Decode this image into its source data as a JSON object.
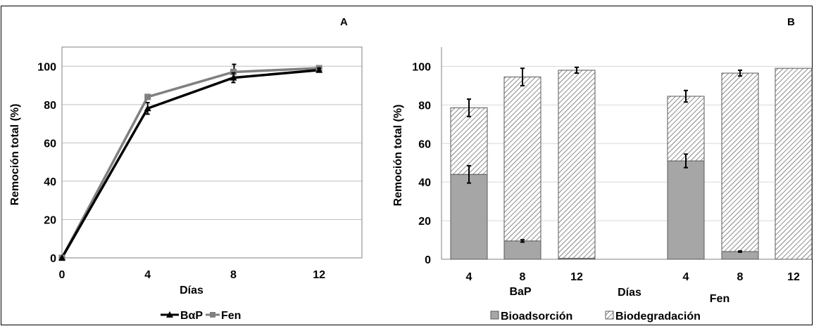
{
  "chart_data": [
    {
      "type": "line",
      "panel_label": "A",
      "xlabel": "Días",
      "ylabel": "Remoción total (%)",
      "x": [
        0,
        4,
        8,
        12
      ],
      "xlim": [
        0,
        14
      ],
      "ylim": [
        0,
        110
      ],
      "yticks": [
        0,
        20,
        40,
        60,
        80,
        100
      ],
      "grid": true,
      "legend_position": "bottom",
      "series": [
        {
          "name": "BαP",
          "values": [
            0,
            78,
            94,
            98
          ],
          "errors": [
            0,
            3,
            2.5,
            1
          ],
          "color": "#000000",
          "marker": "triangle"
        },
        {
          "name": "Fen",
          "values": [
            0,
            84,
            97,
            99
          ],
          "errors": [
            0,
            1,
            4,
            1
          ],
          "color": "#808080",
          "marker": "square"
        }
      ]
    },
    {
      "type": "bar",
      "stacked": true,
      "panel_label": "B",
      "xlabel": "Días",
      "ylabel": "Remoción total (%)",
      "ylim": [
        0,
        110
      ],
      "yticks": [
        0,
        20,
        40,
        60,
        80,
        100
      ],
      "grid": true,
      "legend_position": "bottom",
      "groups": [
        {
          "name": "BaP",
          "categories": [
            "4",
            "8",
            "12"
          ]
        },
        {
          "name": "Fen",
          "categories": [
            "4",
            "8",
            "12"
          ]
        }
      ],
      "categories": [
        "4",
        "8",
        "12",
        "4",
        "8",
        "12"
      ],
      "series": [
        {
          "name": "Bioadsorción",
          "values": [
            44,
            9.5,
            0.5,
            51,
            4,
            0
          ],
          "errors": [
            4.5,
            0.6,
            0,
            3.5,
            0.3,
            0
          ],
          "color": "#a6a6a6"
        },
        {
          "name": "Biodegradación",
          "values": [
            34.5,
            85,
            97.5,
            33.5,
            92.5,
            99
          ],
          "errors": [
            4.5,
            4.5,
            1.5,
            3,
            1.5,
            0
          ],
          "color": "#ffffff"
        }
      ]
    }
  ]
}
